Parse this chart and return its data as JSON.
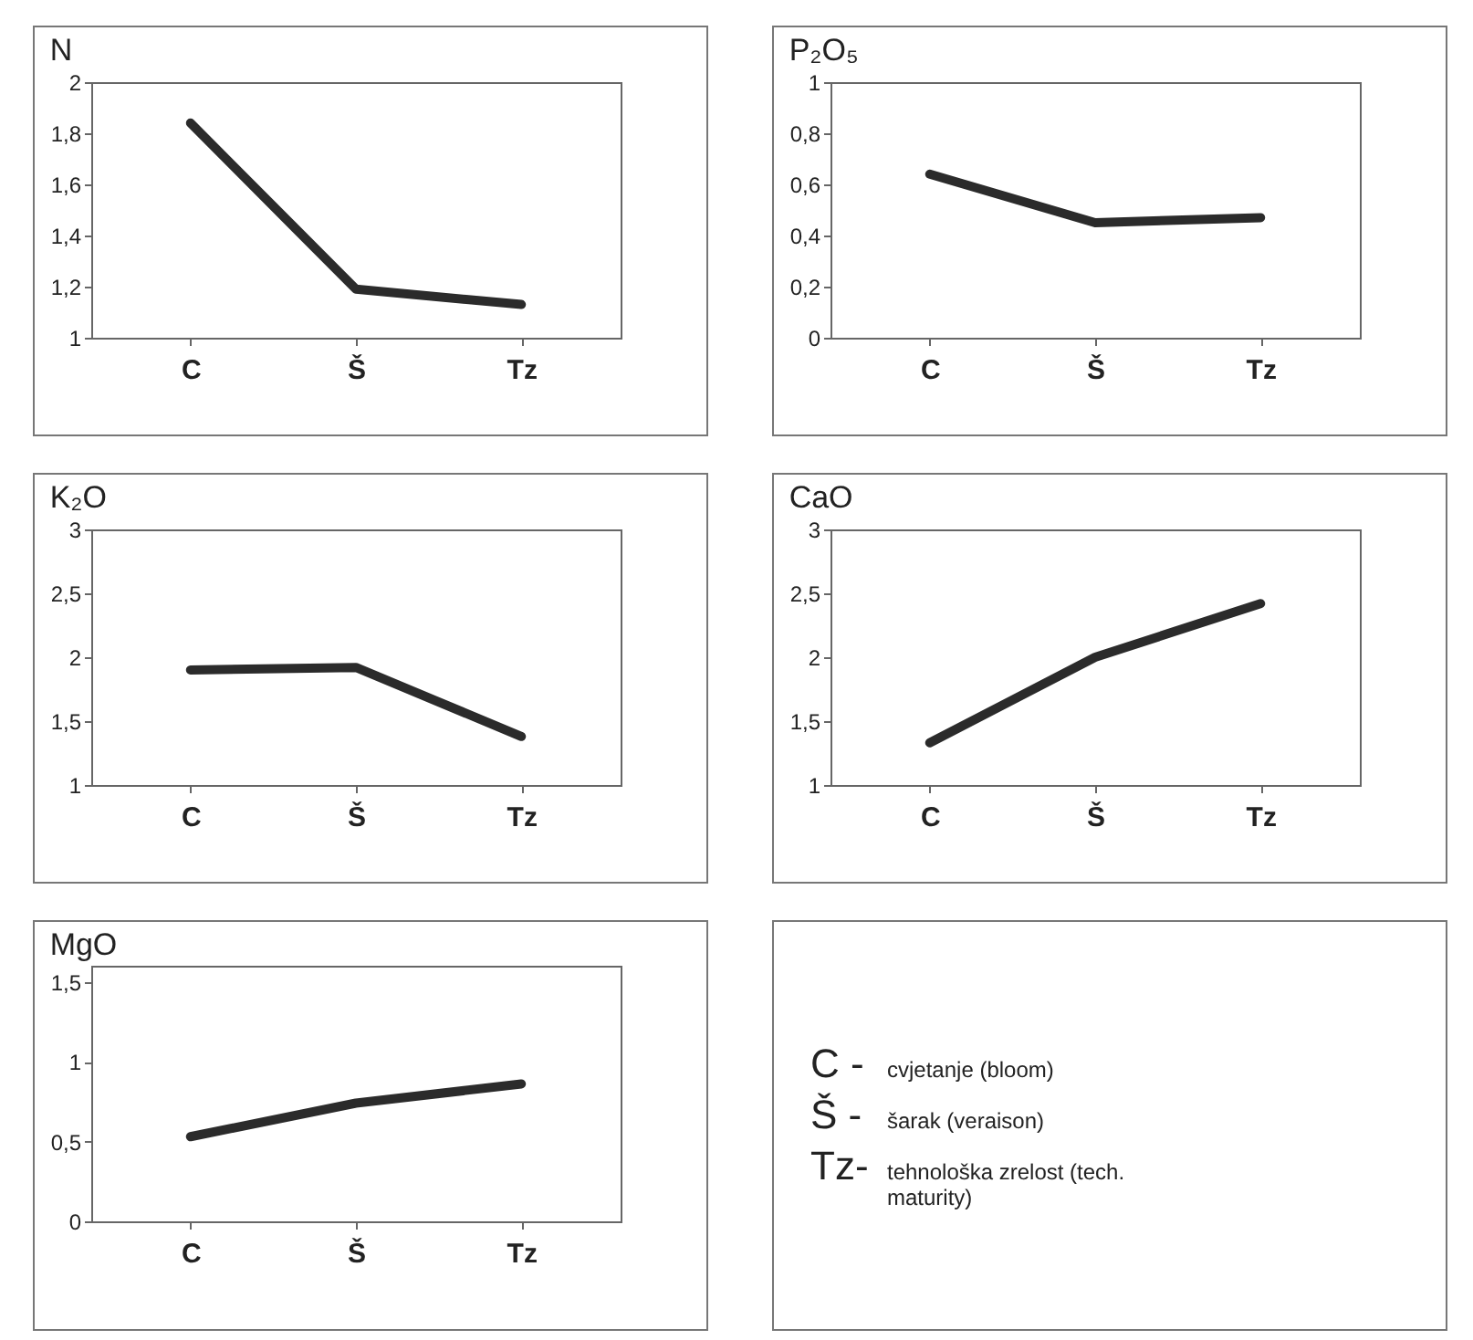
{
  "chart_data": [
    {
      "type": "line",
      "title": "N",
      "categories": [
        "C",
        "Š",
        "Tz"
      ],
      "values": [
        1.84,
        1.19,
        1.13
      ],
      "color": "#2b2b2b",
      "ylim": [
        1,
        2
      ],
      "yticks": [
        1,
        {
          "value": 1.2,
          "label": "1,2"
        },
        {
          "value": 1.4,
          "label": "1,4"
        },
        {
          "value": 1.6,
          "label": "1,6"
        },
        {
          "value": 1.8,
          "label": "1,8"
        },
        2
      ]
    },
    {
      "type": "line",
      "title": "P₂O₅",
      "categories": [
        "C",
        "Š",
        "Tz"
      ],
      "values": [
        0.64,
        0.45,
        0.47
      ],
      "color": "#2b2b2b",
      "ylim": [
        0,
        1
      ],
      "yticks": [
        0,
        {
          "value": 0.2,
          "label": "0,2"
        },
        {
          "value": 0.4,
          "label": "0,4"
        },
        {
          "value": 0.6,
          "label": "0,6"
        },
        {
          "value": 0.8,
          "label": "0,8"
        },
        1
      ]
    },
    {
      "type": "line",
      "title": "K₂O",
      "categories": [
        "C",
        "Š",
        "Tz"
      ],
      "values": [
        1.9,
        1.92,
        1.38
      ],
      "color": "#2b2b2b",
      "ylim": [
        1,
        3
      ],
      "yticks": [
        1,
        {
          "value": 1.5,
          "label": "1,5"
        },
        2,
        {
          "value": 2.5,
          "label": "2,5"
        },
        3
      ]
    },
    {
      "type": "line",
      "title": "CaO",
      "categories": [
        "C",
        "Š",
        "Tz"
      ],
      "values": [
        1.33,
        2.0,
        2.42
      ],
      "color": "#2b2b2b",
      "ylim": [
        1,
        3
      ],
      "yticks": [
        1,
        {
          "value": 1.5,
          "label": "1,5"
        },
        2,
        {
          "value": 2.5,
          "label": "2,5"
        },
        3
      ]
    },
    {
      "type": "line",
      "title": "MgO",
      "categories": [
        "C",
        "Š",
        "Tz"
      ],
      "values": [
        0.53,
        0.74,
        0.86
      ],
      "color": "#2b2b2b",
      "ylim": [
        0,
        1.6
      ],
      "yticks": [
        0,
        {
          "value": 0.5,
          "label": "0,5"
        },
        1,
        {
          "value": 1.5,
          "label": "1,5"
        }
      ]
    },
    {
      "type": "other",
      "annotations": [
        "C - cvjetanje (bloom)",
        "Š - šarak (veraison)",
        "Tz- tehnološka zrelost (tech. maturity)"
      ]
    }
  ]
}
